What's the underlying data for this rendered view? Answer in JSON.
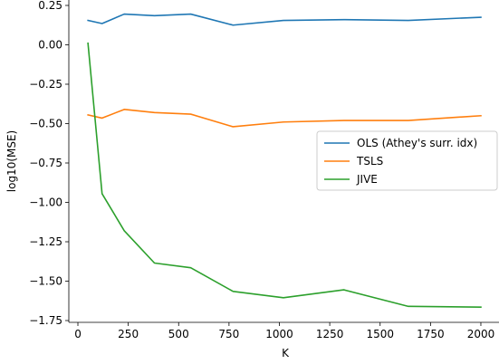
{
  "chart_data": {
    "type": "line",
    "title": "",
    "xlabel": "K",
    "ylabel": "log10(MSE)",
    "xlim": [
      -45,
      2090
    ],
    "ylim": [
      -1.75,
      0.25
    ],
    "xticks": [
      0,
      250,
      500,
      750,
      1000,
      1250,
      1500,
      1750,
      2000
    ],
    "xtick_labels": [
      "0",
      "250",
      "500",
      "750",
      "1000",
      "1250",
      "1500",
      "1750",
      "2000"
    ],
    "yticks": [
      0.25,
      0.0,
      -0.25,
      -0.5,
      -0.75,
      -1.0,
      -1.25,
      -1.5,
      -1.75
    ],
    "ytick_labels": [
      "0.25",
      "0.00",
      "−0.25",
      "−0.50",
      "−0.75",
      "−1.00",
      "−1.25",
      "−1.50",
      "−1.75"
    ],
    "grid": false,
    "legend_position": "center-right",
    "x": [
      50,
      120,
      230,
      380,
      560,
      770,
      1020,
      1320,
      1640,
      2000
    ],
    "series": [
      {
        "name": "OLS (Athey's surr. idx)",
        "color": "#1f77b4",
        "values": [
          0.155,
          0.135,
          0.195,
          0.185,
          0.195,
          0.125,
          0.155,
          0.16,
          0.155,
          0.175
        ]
      },
      {
        "name": "TSLS",
        "color": "#ff7f0e",
        "values": [
          -0.445,
          -0.465,
          -0.41,
          -0.43,
          -0.44,
          -0.52,
          -0.49,
          -0.48,
          -0.48,
          -0.45
        ]
      },
      {
        "name": "JIVE",
        "color": "#2ca02c",
        "values": [
          0.01,
          -0.945,
          -1.18,
          -1.385,
          -1.415,
          -1.565,
          -1.605,
          -1.555,
          -1.66,
          -1.665
        ]
      }
    ]
  }
}
